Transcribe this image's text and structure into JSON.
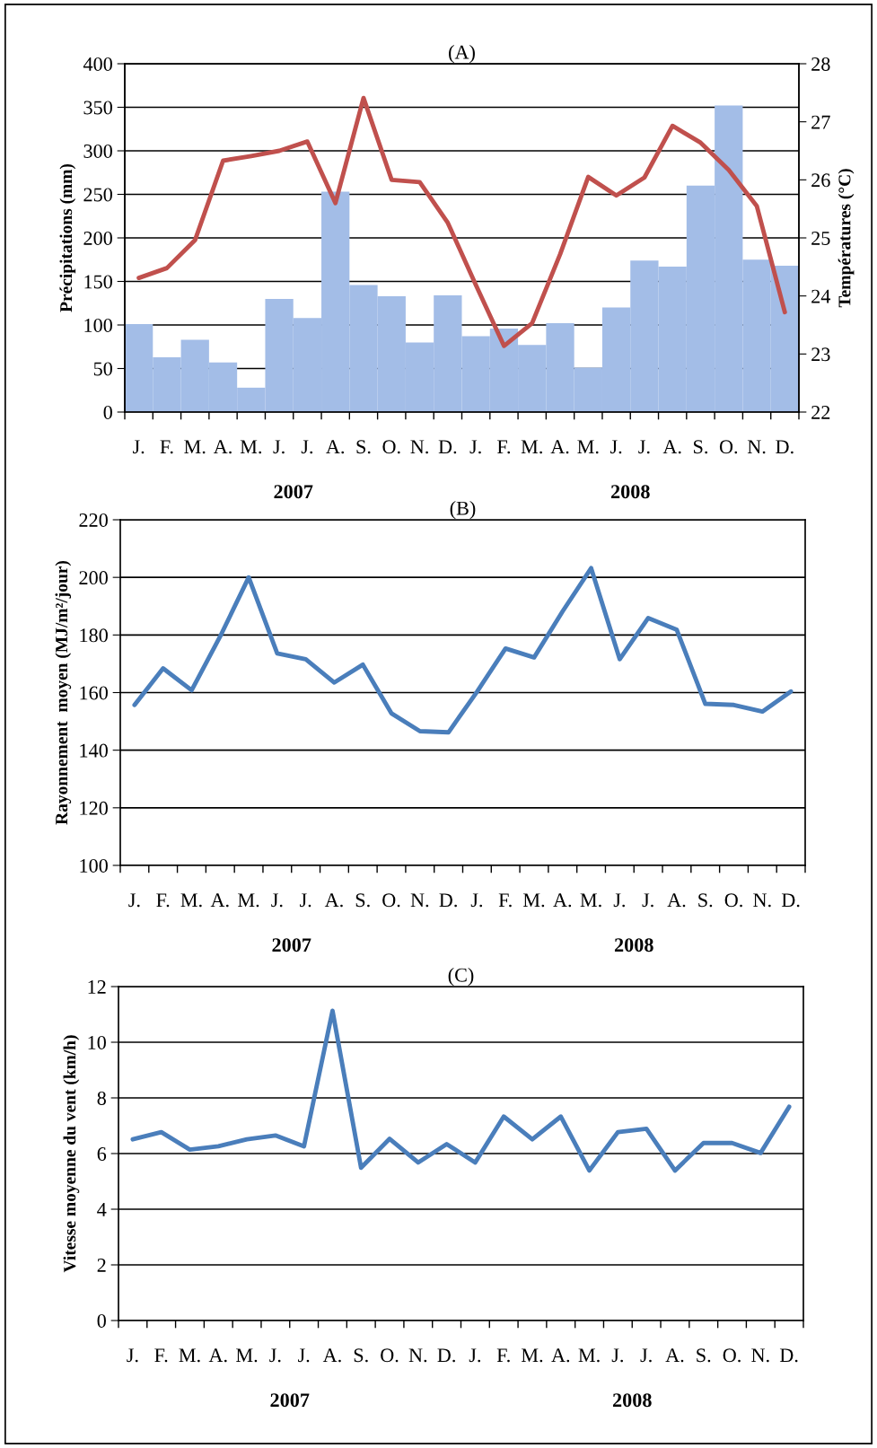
{
  "chart_data": [
    {
      "type": "bar",
      "title": "(A)",
      "ylabel": "Précipitations (mm)",
      "y2label": "Températures (°C)",
      "categories": [
        "J.",
        "F.",
        "M.",
        "A.",
        "M.",
        "J.",
        "J.",
        "A.",
        "S.",
        "O.",
        "N.",
        "D.",
        "J.",
        "F.",
        "M.",
        "A.",
        "M.",
        "J.",
        "J.",
        "A.",
        "S.",
        "O.",
        "N.",
        "D."
      ],
      "series": [
        {
          "type": "bar",
          "color": "#a3bde7",
          "values": [
            101,
            63,
            83,
            57,
            28,
            130,
            108,
            253,
            146,
            133,
            80,
            134,
            87,
            96,
            77,
            102,
            51,
            120,
            174,
            167,
            260,
            352,
            175,
            168
          ]
        },
        {
          "type": "line",
          "axis": "y2",
          "color": "#c0504d",
          "values": [
            24.31,
            24.48,
            24.96,
            26.33,
            26.41,
            26.5,
            26.66,
            25.6,
            27.41,
            26.0,
            25.96,
            25.26,
            24.19,
            23.14,
            23.53,
            24.72,
            26.05,
            25.73,
            26.04,
            26.93,
            26.64,
            26.17,
            25.55,
            23.72
          ]
        }
      ],
      "ylim": [
        0,
        400
      ],
      "yticks": [
        0,
        50,
        100,
        150,
        200,
        250,
        300,
        350,
        400
      ],
      "y2lim": [
        22,
        28
      ],
      "y2ticks": [
        22,
        23,
        24,
        25,
        26,
        27,
        28
      ],
      "grid": "y",
      "annotations": [
        "2007",
        "2008"
      ]
    },
    {
      "type": "line",
      "title": "(B)",
      "ylabel": "Rayonnement  moyen (MJ/m²/jour)",
      "categories": [
        "J.",
        "F.",
        "M.",
        "A.",
        "M.",
        "J.",
        "J.",
        "A.",
        "S.",
        "O.",
        "N.",
        "D.",
        "J.",
        "F.",
        "M.",
        "A.",
        "M.",
        "J.",
        "J.",
        "A.",
        "S.",
        "O.",
        "N.",
        "D."
      ],
      "series": [
        {
          "color": "#4a7ebb",
          "values": [
            155.7,
            168.4,
            160.8,
            179.5,
            200,
            173.6,
            171.6,
            163.5,
            169.7,
            152.8,
            146.6,
            146.2,
            160.3,
            175.3,
            172.2,
            188.2,
            203.2,
            171.6,
            185.9,
            181.8,
            156.1,
            155.7,
            153.4,
            160.4
          ]
        }
      ],
      "ylim": [
        100,
        220
      ],
      "yticks": [
        100,
        120,
        140,
        160,
        180,
        200,
        220
      ],
      "grid": "y",
      "annotations": [
        "2007",
        "2008"
      ]
    },
    {
      "type": "line",
      "title": "(C)",
      "ylabel": "Vitesse moyenne du vent (km/h)",
      "categories": [
        "J.",
        "F.",
        "M.",
        "A.",
        "M.",
        "J.",
        "J.",
        "A.",
        "S.",
        "O.",
        "N.",
        "D.",
        "J.",
        "F.",
        "M.",
        "A.",
        "M.",
        "J.",
        "J.",
        "A.",
        "S.",
        "O.",
        "N.",
        "D."
      ],
      "series": [
        {
          "color": "#4a7ebb",
          "values": [
            6.51,
            6.77,
            6.14,
            6.26,
            6.51,
            6.65,
            6.26,
            11.13,
            5.49,
            6.53,
            5.68,
            6.34,
            5.68,
            7.33,
            6.51,
            7.33,
            5.39,
            6.77,
            6.89,
            5.39,
            6.38,
            6.38,
            6.02,
            7.68
          ]
        }
      ],
      "ylim": [
        0,
        12
      ],
      "yticks": [
        0,
        2,
        4,
        6,
        8,
        10,
        12
      ],
      "grid": "y",
      "annotations": [
        "2007",
        "2008"
      ]
    }
  ]
}
